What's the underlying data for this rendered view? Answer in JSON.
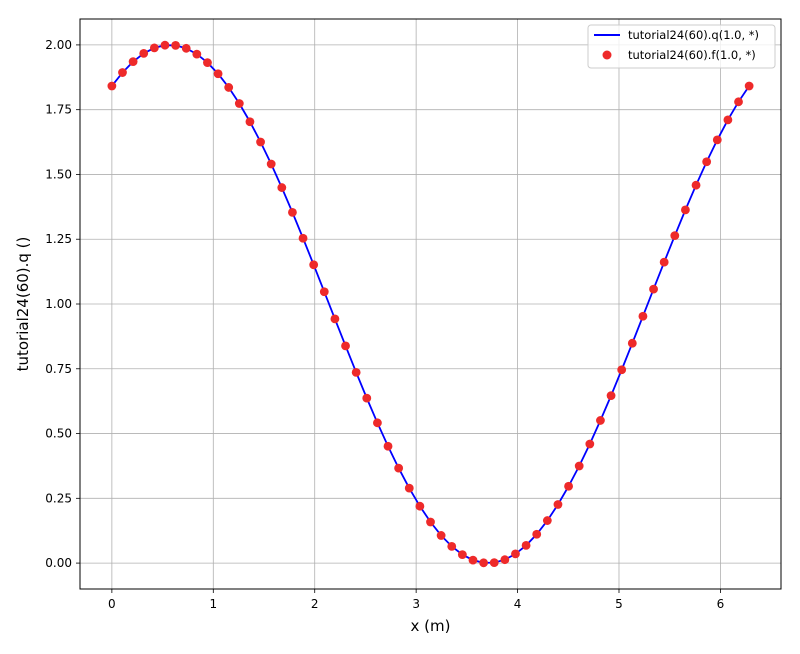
{
  "chart_data": {
    "type": "line",
    "xlabel": "x (m)",
    "ylabel": "tutorial24(60).q ()",
    "xlim": [
      -0.3142,
      6.5973
    ],
    "ylim": [
      -0.1,
      2.1
    ],
    "xticks": [
      "0",
      "1",
      "2",
      "3",
      "4",
      "5",
      "6"
    ],
    "yticks": [
      "0.00",
      "0.25",
      "0.50",
      "0.75",
      "1.00",
      "1.25",
      "1.50",
      "1.75",
      "2.00"
    ],
    "grid": true,
    "legend_position": "top-right",
    "series": [
      {
        "name": "tutorial24(60).q(1.0, *)",
        "style": "line",
        "color": "#0000ff",
        "formula": "1 + sin(x + 1)",
        "x_start": 0,
        "x_end": 6.2832,
        "n_points": 61
      },
      {
        "name": "tutorial24(60).f(1.0, *)",
        "style": "markers",
        "color": "#ee2a2a",
        "formula": "1 + sin(x + 1)",
        "x_start": 0,
        "x_end": 6.2832,
        "n_points": 61
      }
    ]
  }
}
